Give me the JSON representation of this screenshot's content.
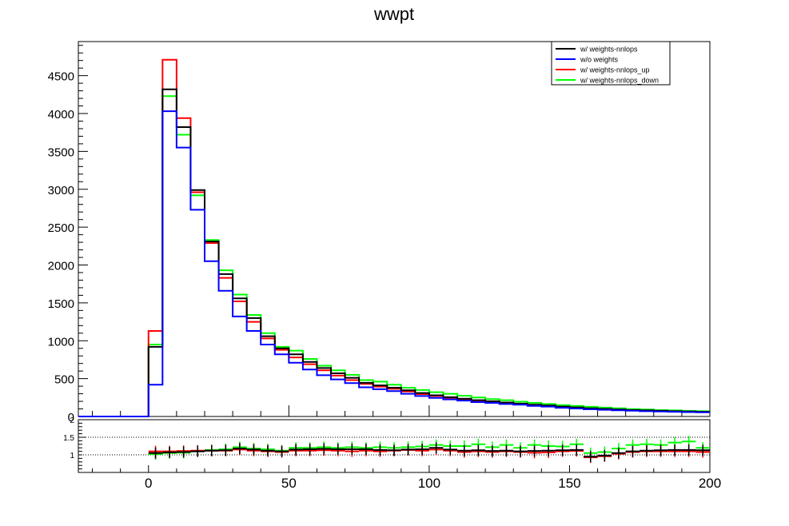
{
  "chart_data": {
    "type": "histogram",
    "title": "wwpt",
    "xlim": [
      -25,
      200
    ],
    "x_ticks": [
      0,
      50,
      100,
      150,
      200
    ],
    "bin_width": 5,
    "bin_start": -25,
    "main": {
      "ylim": [
        0,
        4950
      ],
      "y_ticks": [
        0,
        500,
        1000,
        1500,
        2000,
        2500,
        3000,
        3500,
        4000,
        4500
      ],
      "grid": false,
      "legend_position": "top-right",
      "series": [
        {
          "name": "w/ weights-nnlops",
          "color": "#000000",
          "values": [
            0,
            0,
            0,
            0,
            0,
            920,
            4320,
            3820,
            2990,
            2310,
            1880,
            1560,
            1300,
            1060,
            900,
            820,
            720,
            640,
            570,
            510,
            445,
            410,
            380,
            345,
            310,
            280,
            255,
            235,
            215,
            200,
            185,
            170,
            155,
            145,
            130,
            120,
            108,
            100,
            92,
            85,
            80,
            75,
            70,
            66,
            62
          ]
        },
        {
          "name": "w/o weights",
          "color": "#0000ff",
          "values": [
            0,
            0,
            0,
            0,
            0,
            420,
            4030,
            3550,
            2730,
            2050,
            1660,
            1320,
            1130,
            950,
            820,
            710,
            620,
            545,
            490,
            440,
            385,
            360,
            335,
            300,
            270,
            245,
            225,
            210,
            190,
            180,
            165,
            155,
            140,
            130,
            115,
            105,
            95,
            88,
            82,
            76,
            70,
            66,
            62,
            58,
            55
          ]
        },
        {
          "name": "w/ weights-nnlops_up",
          "color": "#ff0000",
          "values": [
            0,
            0,
            0,
            0,
            0,
            1130,
            4710,
            3940,
            2960,
            2290,
            1830,
            1520,
            1250,
            1030,
            880,
            780,
            690,
            610,
            540,
            480,
            430,
            395,
            365,
            330,
            295,
            270,
            245,
            225,
            205,
            190,
            175,
            160,
            145,
            135,
            125,
            115,
            103,
            95,
            88,
            80,
            76,
            71,
            66,
            62,
            58
          ]
        },
        {
          "name": "w/ weights-nnlops_down",
          "color": "#00ff00",
          "values": [
            0,
            0,
            0,
            0,
            0,
            950,
            4230,
            3720,
            2920,
            2330,
            1930,
            1610,
            1340,
            1100,
            920,
            870,
            760,
            670,
            610,
            550,
            480,
            460,
            420,
            380,
            350,
            320,
            300,
            275,
            250,
            230,
            215,
            195,
            180,
            165,
            150,
            140,
            128,
            118,
            108,
            98,
            92,
            85,
            80,
            74,
            70
          ]
        }
      ]
    },
    "ratio": {
      "ylim": [
        0.5,
        2
      ],
      "y_ticks": [
        1,
        1.5,
        2
      ],
      "reference_lines": [
        1,
        1.5
      ],
      "series": [
        {
          "name": "w/ weights-nnlops",
          "color": "#000000",
          "values": [
            null,
            null,
            null,
            null,
            null,
            1.05,
            1.07,
            1.08,
            1.1,
            1.12,
            1.13,
            1.18,
            1.15,
            1.12,
            1.1,
            1.15,
            1.16,
            1.17,
            1.16,
            1.16,
            1.16,
            1.14,
            1.13,
            1.15,
            1.16,
            1.2,
            1.15,
            1.12,
            1.13,
            1.11,
            1.12,
            1.1,
            1.11,
            1.12,
            1.13,
            1.14,
            0.95,
            0.98,
            1.05,
            1.1,
            1.12,
            1.13,
            1.14,
            1.14,
            1.13
          ]
        },
        {
          "name": "w/ weights-nnlops_up",
          "color": "#ff0000",
          "values": [
            null,
            null,
            null,
            null,
            null,
            1.1,
            1.1,
            1.11,
            1.12,
            1.12,
            1.12,
            1.15,
            1.12,
            1.1,
            1.08,
            1.12,
            1.12,
            1.13,
            1.12,
            1.1,
            1.12,
            1.1,
            1.12,
            1.14,
            1.12,
            1.15,
            1.12,
            1.08,
            1.1,
            1.08,
            1.1,
            1.08,
            1.06,
            1.07,
            1.1,
            1.11,
            0.93,
            0.96,
            1.03,
            1.08,
            1.1,
            1.1,
            1.1,
            1.1,
            1.08
          ]
        },
        {
          "name": "w/ weights-nnlops_down",
          "color": "#00ff00",
          "values": [
            null,
            null,
            null,
            null,
            null,
            1.02,
            1.05,
            1.06,
            1.1,
            1.14,
            1.16,
            1.22,
            1.18,
            1.16,
            1.12,
            1.2,
            1.2,
            1.22,
            1.2,
            1.22,
            1.2,
            1.22,
            1.2,
            1.22,
            1.24,
            1.28,
            1.25,
            1.25,
            1.3,
            1.22,
            1.28,
            1.2,
            1.28,
            1.25,
            1.24,
            1.3,
            1.05,
            1.08,
            1.18,
            1.28,
            1.3,
            1.28,
            1.35,
            1.38,
            1.2
          ]
        }
      ]
    }
  }
}
